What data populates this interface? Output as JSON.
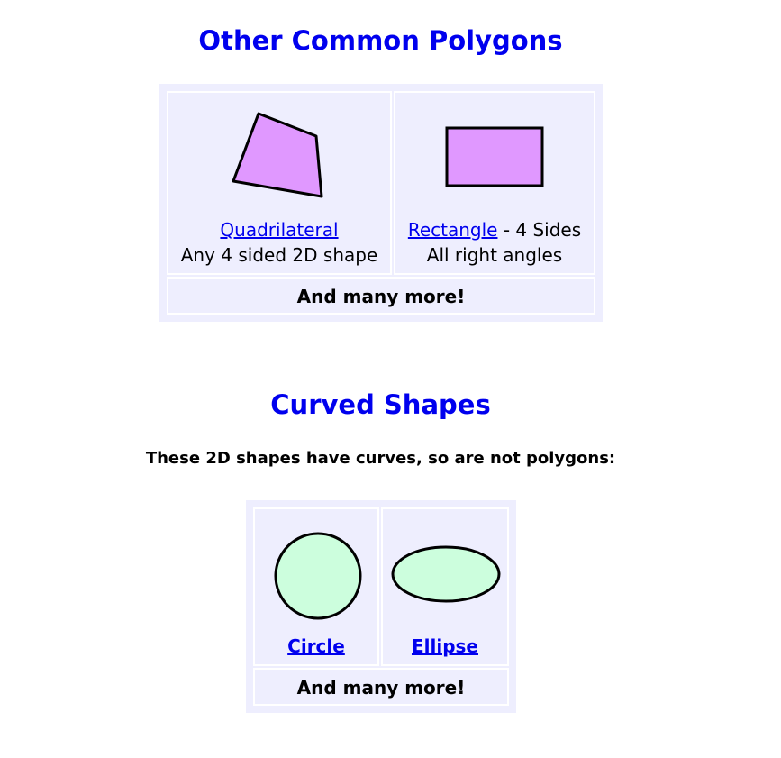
{
  "polygons": {
    "heading": "Other Common Polygons",
    "quadrilateral": {
      "link": "Quadrilateral",
      "desc": "Any 4 sided 2D shape"
    },
    "rectangle": {
      "link": "Rectangle",
      "suffix": " - 4 Sides",
      "desc": "All right angles"
    },
    "more": "And many more!"
  },
  "curved": {
    "heading": "Curved Shapes",
    "intro": "These 2D shapes have curves, so are not polygons:",
    "circle": {
      "link": "Circle"
    },
    "ellipse": {
      "link": "Ellipse"
    },
    "more": "And many more!"
  },
  "colors": {
    "heading": "#0000ee",
    "link": "#0000ee",
    "panel": "#eeeefe",
    "polygon_fill": "#e098ff",
    "curve_fill": "#ccfedd"
  }
}
